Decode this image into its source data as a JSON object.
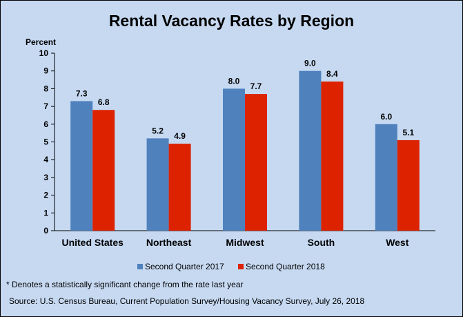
{
  "chart_data": {
    "type": "bar",
    "title": "Rental Vacancy Rates by Region",
    "ylabel": "Percent",
    "xlabel": "",
    "ylim": [
      0,
      10
    ],
    "yticks": [
      0,
      1,
      2,
      3,
      4,
      5,
      6,
      7,
      8,
      9,
      10
    ],
    "categories": [
      "United States",
      "Northeast",
      "Midwest",
      "South",
      "West"
    ],
    "series": [
      {
        "name": "Second Quarter 2017",
        "values": [
          7.3,
          5.2,
          8.0,
          9.0,
          6.0
        ],
        "color": "#4f81bd",
        "labels": [
          "7.3",
          "5.2",
          "8.0",
          "9.0",
          "6.0"
        ]
      },
      {
        "name": "Second Quarter 2018",
        "values": [
          6.8,
          4.9,
          7.7,
          8.4,
          5.1
        ],
        "color": "#dd2200",
        "labels": [
          "6.8",
          "4.9",
          "7.7",
          "8.4",
          "5.1"
        ]
      }
    ],
    "grid": false,
    "legend_position": "bottom"
  },
  "footnote": "* Denotes a statistically significant change from the rate last year",
  "source": "Source: U.S. Census Bureau, Current Population Survey/Housing Vacancy Survey, July 26, 2018"
}
